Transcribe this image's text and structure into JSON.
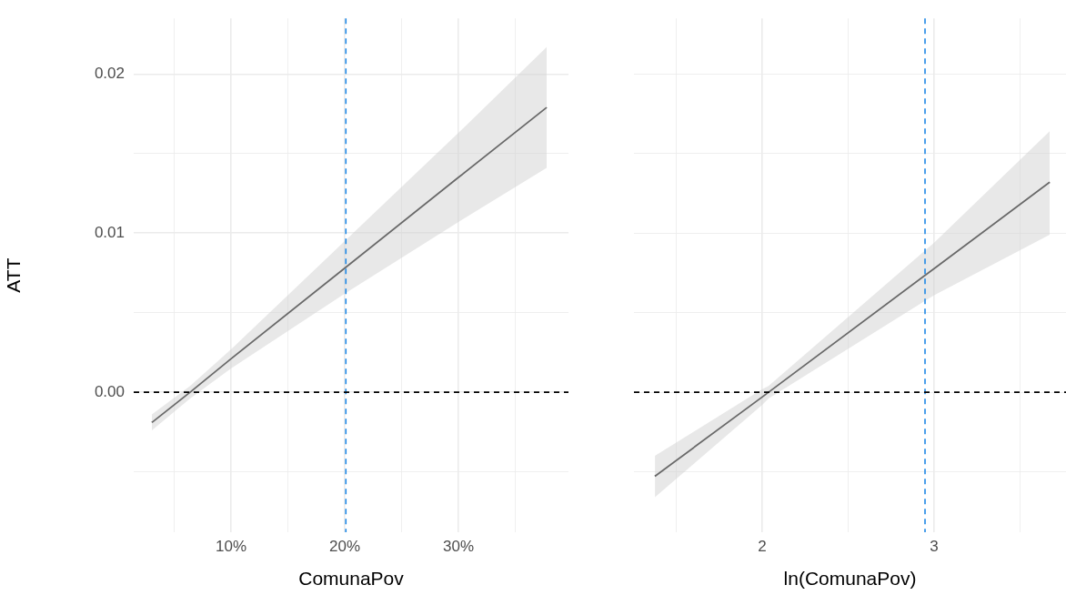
{
  "chart_data": [
    {
      "type": "line",
      "xlabel": "ComunaPov",
      "ylabel": "ATT",
      "x": [
        3.04,
        6.4,
        10,
        20,
        30,
        37.76
      ],
      "series": [
        {
          "color": "#000000",
          "values": [
            -0.0019,
            0,
            0.0021,
            0.0078,
            0.0135,
            0.0179
          ],
          "lower": [
            -0.0024,
            -0.0004,
            0.0015,
            0.0062,
            0.0107,
            0.0141
          ],
          "upper": [
            -0.0014,
            0.0004,
            0.0027,
            0.0095,
            0.0163,
            0.0217
          ]
        }
      ],
      "xlim": [
        1.44,
        39.68
      ],
      "xticks": [
        {
          "value": 5,
          "label": null
        },
        {
          "value": 10,
          "label": "10%"
        },
        {
          "value": 15,
          "label": null
        },
        {
          "value": 20,
          "label": "20%"
        },
        {
          "value": 25,
          "label": null
        },
        {
          "value": 30,
          "label": "30%"
        },
        {
          "value": 35,
          "label": null
        }
      ],
      "ylim": [
        -0.0088,
        0.0235
      ],
      "yticks": [
        {
          "value": -0.005,
          "label": null
        },
        {
          "value": 0,
          "label": "0.00"
        },
        {
          "value": 0.005,
          "label": null
        },
        {
          "value": 0.01,
          "label": "0.01"
        },
        {
          "value": 0.015,
          "label": null
        },
        {
          "value": 0.02,
          "label": "0.02"
        }
      ],
      "grid": true,
      "line_style": "solid",
      "marker": "none",
      "ref_lines": [
        {
          "axis": "x",
          "value": 20.1,
          "color": "#1e88e5",
          "line_style": "dashed"
        },
        {
          "axis": "y",
          "value": 0,
          "color": "#000000",
          "line_style": "dashed"
        }
      ]
    },
    {
      "type": "line",
      "xlabel": "ln(ComunaPov)",
      "x": [
        1.376,
        2,
        2.037,
        3,
        3.672
      ],
      "series": [
        {
          "color": "#000000",
          "values": [
            -0.00528,
            -0.0003,
            0,
            0.00777,
            0.0132
          ],
          "lower": [
            -0.0066,
            -0.0008,
            -0.0004,
            0.0061,
            0.0099
          ],
          "upper": [
            -0.004,
            0.0002,
            0.0004,
            0.0094,
            0.0164
          ]
        }
      ],
      "xlim": [
        1.254,
        3.767
      ],
      "xticks": [
        {
          "value": 1.5,
          "label": null
        },
        {
          "value": 2,
          "label": "2"
        },
        {
          "value": 2.5,
          "label": null
        },
        {
          "value": 3,
          "label": "3"
        },
        {
          "value": 3.5,
          "label": null
        }
      ],
      "ylim": [
        -0.0088,
        0.0235
      ],
      "yticks": [
        {
          "value": -0.005,
          "label": null
        },
        {
          "value": 0,
          "label": null
        },
        {
          "value": 0.005,
          "label": null
        },
        {
          "value": 0.01,
          "label": null
        },
        {
          "value": 0.015,
          "label": null
        },
        {
          "value": 0.02,
          "label": null
        }
      ],
      "grid": true,
      "tick_labels": "x",
      "line_style": "solid",
      "marker": "none",
      "ref_lines": [
        {
          "axis": "x",
          "value": 2.947,
          "color": "#1e88e5",
          "line_style": "dashed"
        },
        {
          "axis": "y",
          "value": 0,
          "color": "#000000",
          "line_style": "dashed"
        }
      ]
    }
  ]
}
